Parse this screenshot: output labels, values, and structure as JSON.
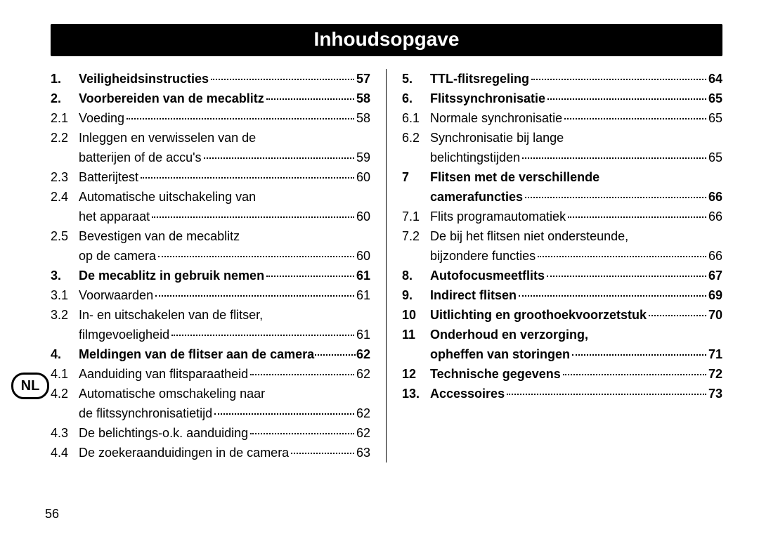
{
  "title": "Inhoudsopgave",
  "page_number": "56",
  "language_badge": "NL",
  "left": [
    {
      "num": "1.",
      "text": "Veiligheidsinstructies",
      "page": "57",
      "bold": true
    },
    {
      "num": "2.",
      "text": "Voorbereiden van de mecablitz",
      "page": "58",
      "bold": true
    },
    {
      "num": "2.1",
      "text": "Voeding",
      "page": "58",
      "bold": false
    },
    {
      "num": "2.2",
      "text": "Inleggen en verwisselen van de",
      "page": "",
      "bold": false
    },
    {
      "num": "",
      "text": "batterijen of de accu's",
      "page": "59",
      "bold": false
    },
    {
      "num": "2.3",
      "text": "Batterijtest",
      "page": "60",
      "bold": false
    },
    {
      "num": "2.4",
      "text": "Automatische uitschakeling van",
      "page": "",
      "bold": false
    },
    {
      "num": "",
      "text": "het apparaat",
      "page": "60",
      "bold": false
    },
    {
      "num": "2.5",
      "text": "Bevestigen van de mecablitz",
      "page": "",
      "bold": false
    },
    {
      "num": "",
      "text": "op de camera",
      "page": "60",
      "bold": false
    },
    {
      "num": "3.",
      "text": "De mecablitz in gebruik nemen",
      "page": "61",
      "bold": true
    },
    {
      "num": "3.1",
      "text": "Voorwaarden",
      "page": "61",
      "bold": false
    },
    {
      "num": "3.2",
      "text": "In- en uitschakelen van de flitser,",
      "page": "",
      "bold": false
    },
    {
      "num": "",
      "text": "filmgevoeligheid",
      "page": "61",
      "bold": false
    },
    {
      "num": "4.",
      "text": "Meldingen van de flitser aan de camera",
      "page": "62",
      "bold": true,
      "tight": true
    },
    {
      "num": "4.1",
      "text": "Aanduiding van flitsparaatheid",
      "page": "62",
      "bold": false
    },
    {
      "num": "4.2",
      "text": "Automatische omschakeling naar",
      "page": "",
      "bold": false
    },
    {
      "num": "",
      "text": "de flitssynchronisatietijd",
      "page": "62",
      "bold": false
    },
    {
      "num": "4.3",
      "text": "De belichtings-o.k. aanduiding",
      "page": "62",
      "bold": false
    },
    {
      "num": "4.4",
      "text": "De zoekeraanduidingen in de camera",
      "page": "63",
      "bold": false
    }
  ],
  "right": [
    {
      "num": "5.",
      "text": "TTL-flitsregeling",
      "page": "64",
      "bold": true
    },
    {
      "num": "6.",
      "text": "Flitssynchronisatie",
      "page": "65",
      "bold": true
    },
    {
      "num": "6.1",
      "text": "Normale synchronisatie",
      "page": "65",
      "bold": false
    },
    {
      "num": "6.2",
      "text": "Synchronisatie bij lange",
      "page": "",
      "bold": false
    },
    {
      "num": "",
      "text": "belichtingstijden",
      "page": "65",
      "bold": false
    },
    {
      "num": "7",
      "text": "Flitsen met de verschillende",
      "page": "",
      "bold": true
    },
    {
      "num": "",
      "text": "camerafuncties",
      "page": "66",
      "bold": true
    },
    {
      "num": "7.1",
      "text": "Flits programautomatiek",
      "page": "66",
      "bold": false
    },
    {
      "num": "7.2",
      "text": "De bij het flitsen niet ondersteunde,",
      "page": "",
      "bold": false
    },
    {
      "num": "",
      "text": "bijzondere functies",
      "page": "66",
      "bold": false
    },
    {
      "num": "8.",
      "text": "Autofocusmeetflits",
      "page": "67",
      "bold": true
    },
    {
      "num": "9.",
      "text": "Indirect flitsen",
      "page": "69",
      "bold": true
    },
    {
      "num": "10",
      "text": "Uitlichting en groothoekvoorzetstuk",
      "page": "70",
      "bold": true
    },
    {
      "num": "11",
      "text": "Onderhoud en verzorging,",
      "page": "",
      "bold": true
    },
    {
      "num": "",
      "text": "opheffen van storingen",
      "page": "71",
      "bold": true
    },
    {
      "num": "12",
      "text": "Technische gegevens",
      "page": "72",
      "bold": true
    },
    {
      "num": "13.",
      "text": "Accessoires",
      "page": "73",
      "bold": true
    }
  ]
}
